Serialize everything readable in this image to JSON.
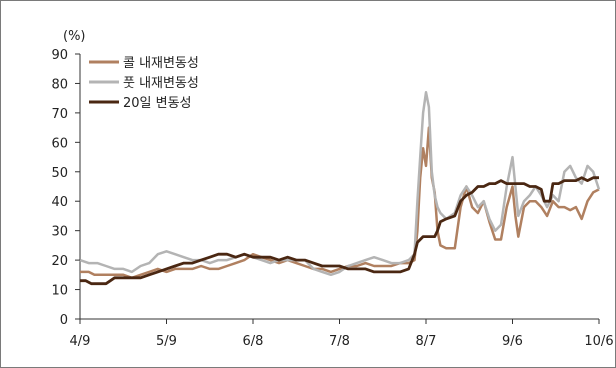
{
  "chart_data": {
    "type": "line",
    "unit_label": "(%)",
    "xlabel": "",
    "ylabel": "",
    "ylim": [
      0,
      90
    ],
    "yticks": [
      0,
      10,
      20,
      30,
      40,
      50,
      60,
      70,
      80,
      90
    ],
    "x_tick_labels": [
      "4/9",
      "5/9",
      "6/8",
      "7/8",
      "8/7",
      "9/6",
      "10/6"
    ],
    "x_tick_positions": [
      0,
      30,
      60,
      90,
      120,
      150,
      180
    ],
    "x_range": [
      0,
      180
    ],
    "grid": false,
    "legend_position": "top-left",
    "series": [
      {
        "name": "콜 내재변동성",
        "color": "#b08060",
        "width": 2.5,
        "points": [
          [
            0,
            16
          ],
          [
            3,
            16
          ],
          [
            5,
            15
          ],
          [
            8,
            15
          ],
          [
            12,
            15
          ],
          [
            15,
            15
          ],
          [
            18,
            14
          ],
          [
            21,
            15
          ],
          [
            24,
            16
          ],
          [
            27,
            17
          ],
          [
            30,
            16
          ],
          [
            33,
            17
          ],
          [
            36,
            17
          ],
          [
            39,
            17
          ],
          [
            42,
            18
          ],
          [
            45,
            17
          ],
          [
            48,
            17
          ],
          [
            51,
            18
          ],
          [
            54,
            19
          ],
          [
            57,
            20
          ],
          [
            60,
            22
          ],
          [
            63,
            21
          ],
          [
            66,
            20
          ],
          [
            69,
            19
          ],
          [
            72,
            20
          ],
          [
            75,
            19
          ],
          [
            78,
            18
          ],
          [
            81,
            17
          ],
          [
            84,
            17
          ],
          [
            87,
            16
          ],
          [
            90,
            17
          ],
          [
            93,
            18
          ],
          [
            96,
            18
          ],
          [
            99,
            19
          ],
          [
            102,
            18
          ],
          [
            105,
            18
          ],
          [
            108,
            18
          ],
          [
            111,
            19
          ],
          [
            114,
            19
          ],
          [
            116,
            20
          ],
          [
            117,
            30
          ],
          [
            118,
            48
          ],
          [
            119,
            58
          ],
          [
            120,
            52
          ],
          [
            121,
            65
          ],
          [
            122,
            48
          ],
          [
            123,
            43
          ],
          [
            124,
            30
          ],
          [
            125,
            25
          ],
          [
            127,
            24
          ],
          [
            130,
            24
          ],
          [
            132,
            38
          ],
          [
            134,
            45
          ],
          [
            136,
            38
          ],
          [
            138,
            36
          ],
          [
            140,
            40
          ],
          [
            142,
            33
          ],
          [
            144,
            27
          ],
          [
            146,
            27
          ],
          [
            148,
            38
          ],
          [
            150,
            45
          ],
          [
            151,
            35
          ],
          [
            152,
            28
          ],
          [
            154,
            38
          ],
          [
            156,
            40
          ],
          [
            158,
            40
          ],
          [
            160,
            38
          ],
          [
            162,
            35
          ],
          [
            164,
            40
          ],
          [
            166,
            38
          ],
          [
            168,
            38
          ],
          [
            170,
            37
          ],
          [
            172,
            38
          ],
          [
            174,
            34
          ],
          [
            176,
            40
          ],
          [
            178,
            43
          ],
          [
            180,
            44
          ]
        ]
      },
      {
        "name": "풋 내재변동성",
        "color": "#b4b4b4",
        "width": 2.5,
        "points": [
          [
            0,
            20
          ],
          [
            3,
            19
          ],
          [
            6,
            19
          ],
          [
            9,
            18
          ],
          [
            12,
            17
          ],
          [
            15,
            17
          ],
          [
            18,
            16
          ],
          [
            21,
            18
          ],
          [
            24,
            19
          ],
          [
            27,
            22
          ],
          [
            30,
            23
          ],
          [
            33,
            22
          ],
          [
            36,
            21
          ],
          [
            39,
            20
          ],
          [
            42,
            20
          ],
          [
            45,
            19
          ],
          [
            48,
            20
          ],
          [
            51,
            20
          ],
          [
            54,
            21
          ],
          [
            57,
            22
          ],
          [
            60,
            21
          ],
          [
            63,
            20
          ],
          [
            66,
            19
          ],
          [
            69,
            20
          ],
          [
            72,
            20
          ],
          [
            75,
            20
          ],
          [
            78,
            20
          ],
          [
            81,
            17
          ],
          [
            84,
            16
          ],
          [
            87,
            15
          ],
          [
            90,
            16
          ],
          [
            93,
            18
          ],
          [
            96,
            19
          ],
          [
            99,
            20
          ],
          [
            102,
            21
          ],
          [
            105,
            20
          ],
          [
            108,
            19
          ],
          [
            111,
            19
          ],
          [
            114,
            20
          ],
          [
            116,
            22
          ],
          [
            117,
            40
          ],
          [
            118,
            55
          ],
          [
            119,
            70
          ],
          [
            120,
            77
          ],
          [
            121,
            72
          ],
          [
            122,
            50
          ],
          [
            123,
            42
          ],
          [
            124,
            38
          ],
          [
            125,
            36
          ],
          [
            127,
            34
          ],
          [
            130,
            36
          ],
          [
            132,
            42
          ],
          [
            134,
            45
          ],
          [
            136,
            42
          ],
          [
            138,
            38
          ],
          [
            140,
            40
          ],
          [
            142,
            34
          ],
          [
            144,
            30
          ],
          [
            146,
            32
          ],
          [
            148,
            45
          ],
          [
            150,
            55
          ],
          [
            151,
            45
          ],
          [
            152,
            35
          ],
          [
            154,
            40
          ],
          [
            156,
            42
          ],
          [
            158,
            45
          ],
          [
            160,
            42
          ],
          [
            162,
            38
          ],
          [
            164,
            42
          ],
          [
            166,
            40
          ],
          [
            168,
            50
          ],
          [
            170,
            52
          ],
          [
            172,
            48
          ],
          [
            174,
            46
          ],
          [
            176,
            52
          ],
          [
            178,
            50
          ],
          [
            180,
            44
          ]
        ]
      },
      {
        "name": "20일 변동성",
        "color": "#4a2712",
        "width": 2.8,
        "points": [
          [
            0,
            13
          ],
          [
            2,
            13
          ],
          [
            4,
            12
          ],
          [
            6,
            12
          ],
          [
            9,
            12
          ],
          [
            12,
            14
          ],
          [
            15,
            14
          ],
          [
            18,
            14
          ],
          [
            21,
            14
          ],
          [
            24,
            15
          ],
          [
            27,
            16
          ],
          [
            30,
            17
          ],
          [
            33,
            18
          ],
          [
            36,
            19
          ],
          [
            39,
            19
          ],
          [
            42,
            20
          ],
          [
            45,
            21
          ],
          [
            48,
            22
          ],
          [
            51,
            22
          ],
          [
            54,
            21
          ],
          [
            57,
            22
          ],
          [
            60,
            21
          ],
          [
            63,
            21
          ],
          [
            66,
            21
          ],
          [
            69,
            20
          ],
          [
            72,
            21
          ],
          [
            75,
            20
          ],
          [
            78,
            20
          ],
          [
            81,
            19
          ],
          [
            84,
            18
          ],
          [
            87,
            18
          ],
          [
            90,
            18
          ],
          [
            93,
            17
          ],
          [
            96,
            17
          ],
          [
            99,
            17
          ],
          [
            102,
            16
          ],
          [
            105,
            16
          ],
          [
            108,
            16
          ],
          [
            111,
            16
          ],
          [
            114,
            17
          ],
          [
            116,
            22
          ],
          [
            117,
            26
          ],
          [
            119,
            28
          ],
          [
            121,
            28
          ],
          [
            123,
            28
          ],
          [
            124,
            30
          ],
          [
            125,
            33
          ],
          [
            127,
            34
          ],
          [
            130,
            35
          ],
          [
            132,
            40
          ],
          [
            134,
            42
          ],
          [
            136,
            43
          ],
          [
            138,
            45
          ],
          [
            140,
            45
          ],
          [
            142,
            46
          ],
          [
            144,
            46
          ],
          [
            146,
            47
          ],
          [
            148,
            46
          ],
          [
            150,
            46
          ],
          [
            152,
            46
          ],
          [
            154,
            46
          ],
          [
            156,
            45
          ],
          [
            158,
            45
          ],
          [
            160,
            44
          ],
          [
            161,
            40
          ],
          [
            163,
            40
          ],
          [
            164,
            46
          ],
          [
            166,
            46
          ],
          [
            168,
            47
          ],
          [
            170,
            47
          ],
          [
            172,
            47
          ],
          [
            174,
            48
          ],
          [
            176,
            47
          ],
          [
            178,
            48
          ],
          [
            180,
            48
          ]
        ]
      }
    ]
  }
}
